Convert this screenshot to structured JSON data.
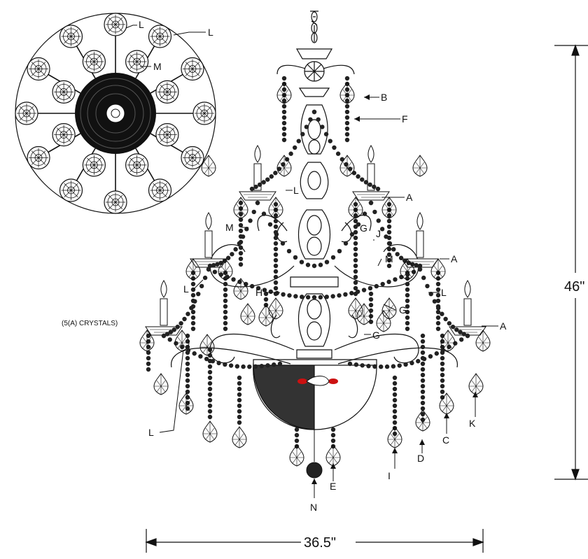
{
  "labels": {
    "top_L1": "L",
    "top_L2": "L",
    "top_M": "M",
    "A1": "A",
    "A2": "A",
    "A3": "A",
    "B": "B",
    "F": "F",
    "J": "J",
    "G1": "G",
    "G2": "G",
    "G3": "G",
    "H": "H",
    "M1": "M",
    "M2": "M",
    "L1": "L",
    "L2": "L",
    "L3": "L",
    "L4": "L",
    "C": "C",
    "D": "D",
    "E": "E",
    "I": "I",
    "K": "K",
    "N": "N"
  },
  "notes": {
    "crystals": "(5(A) CRYSTALS)"
  },
  "dimensions": {
    "height": "46\"",
    "width": "36.5\""
  },
  "colors": {
    "ink": "#111111",
    "accent": "#cc1111"
  }
}
